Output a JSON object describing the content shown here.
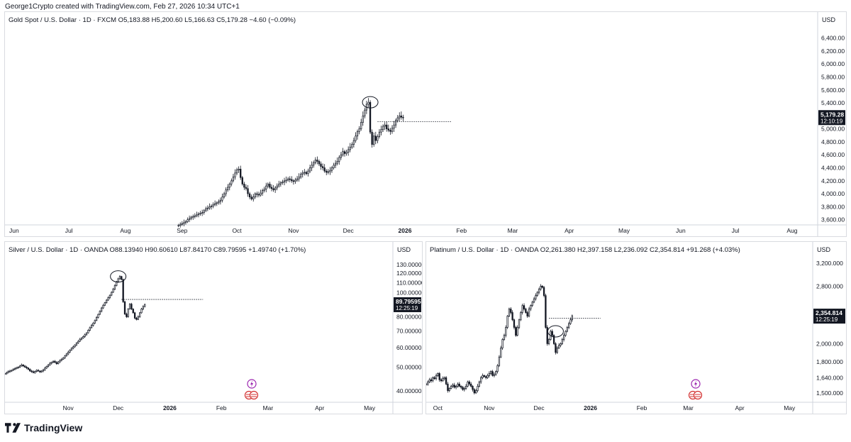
{
  "attribution": "George1Crypto created with TradingView.com, Feb 27, 2026 10:34 UTC+1",
  "brand": "TradingView",
  "colors": {
    "up": "#ffffff",
    "down": "#131722",
    "stroke": "#131722",
    "grid": "#f0f3fa",
    "axis": "#d1d4dc",
    "price_tag_bg": "#131722",
    "price_tag_fg": "#ffffff"
  },
  "icons": [
    "lightning-icon",
    "us-flag-icon"
  ],
  "chart_data": [
    {
      "type": "candlestick",
      "panel": "gold",
      "legend": "Gold Spot / U.S. Dollar · 1D · FXCM  O5,183.88  H5,200.60  L5,166.63  C5,179.28  −4.60 (−0.09%)",
      "currency": "USD",
      "price_label": "5,179.28",
      "countdown": "12:10:19",
      "last_value": 5179.28,
      "ylim": [
        3520,
        6560
      ],
      "y_ticks": [
        "6,400.00",
        "6,200.00",
        "6,000.00",
        "5,800.00",
        "5,600.00",
        "5,400.00",
        "5,200.00",
        "5,000.00",
        "4,800.00",
        "4,600.00",
        "4,400.00",
        "4,200.00",
        "4,000.00",
        "3,800.00",
        "3,600.00"
      ],
      "y_tick_values": [
        6400,
        6200,
        6000,
        5800,
        5600,
        5400,
        5200,
        5000,
        4800,
        4600,
        4400,
        4200,
        4000,
        3800,
        3600
      ],
      "x_ticks": [
        "Jun",
        "Jul",
        "Aug",
        "Sep",
        "Oct",
        "Nov",
        "Dec",
        "2026",
        "Feb",
        "Mar",
        "Apr",
        "May",
        "Jun",
        "Jul",
        "Aug"
      ],
      "x_tick_days": [
        0,
        30,
        61,
        92,
        122,
        153,
        183,
        214,
        245,
        273,
        304,
        334,
        365,
        395,
        426
      ],
      "xlim": [
        -5,
        440
      ],
      "bold_ticks": [
        "2026"
      ],
      "series": [
        {
          "from_day": 90,
          "values": [
            3515,
            3530,
            3540,
            3555,
            3570,
            3600,
            3620,
            3640,
            3650,
            3660,
            3675,
            3690,
            3700,
            3710,
            3740,
            3770,
            3780,
            3800,
            3810,
            3830,
            3850,
            3860,
            3880,
            3900,
            3950,
            4000,
            4060,
            4100,
            4150,
            4200,
            4260,
            4320,
            4370,
            4380,
            4250,
            4150,
            4100,
            4080,
            4000,
            3950,
            3920,
            3950,
            4000,
            3990,
            3980,
            4010,
            4050,
            4070,
            4120,
            4150,
            4100,
            4080,
            4060,
            4090,
            4120,
            4150,
            4170,
            4180,
            4200,
            4210,
            4230,
            4220,
            4200,
            4190,
            4210,
            4230,
            4260,
            4300,
            4320,
            4330,
            4310,
            4350,
            4400,
            4440,
            4480,
            4520,
            4500,
            4460,
            4420,
            4400,
            4350,
            4330,
            4340,
            4360,
            4400,
            4440,
            4470,
            4500,
            4560,
            4600,
            4650,
            4620,
            4640,
            4680,
            4720,
            4760,
            4820,
            4890,
            4960,
            5000,
            5100,
            5200,
            5290,
            5380,
            5410,
            4950,
            4760,
            4890,
            4820,
            4880,
            4950,
            4990,
            5040,
            5060,
            5000,
            4980,
            4960,
            5010,
            5060,
            5130,
            5170,
            5200,
            5180,
            5179.28
          ]
        }
      ],
      "reference_value": 5110,
      "highlight_day": 195
    },
    {
      "type": "candlestick",
      "panel": "silver",
      "legend": "Silver / U.S. Dollar · 1D · OANDA  O88.13940  H90.60610  L87.84170  C89.79595  +1.49740 (+1.70%)",
      "currency": "USD",
      "price_label": "89.79595",
      "countdown": "12:25:19",
      "last_value": 89.79595,
      "ylim": [
        36,
        139
      ],
      "y_ticks": [
        "130.00000",
        "120.00000",
        "110.00000",
        "100.00000",
        "90.00000",
        "80.00000",
        "70.00000",
        "60.00000",
        "50.00000",
        "40.00000"
      ],
      "y_tick_values": [
        130,
        120,
        110,
        100,
        90,
        80,
        70,
        60,
        50,
        40
      ],
      "x_ticks": [
        "Nov",
        "Dec",
        "2026",
        "Feb",
        "Mar",
        "Apr",
        "May"
      ],
      "x_tick_days": [
        153,
        183,
        214,
        245,
        273,
        304,
        334
      ],
      "xlim": [
        115,
        348
      ],
      "bold_ticks": [
        "2026"
      ],
      "series": [
        {
          "from_day": 115,
          "values": [
            47,
            47.5,
            48,
            48.2,
            48.5,
            49,
            49.3,
            49.8,
            50,
            50.5,
            51,
            50.5,
            50,
            49.6,
            49,
            48.2,
            47.9,
            47.5,
            48,
            48.5,
            48.2,
            47.8,
            48.2,
            48.7,
            49.5,
            50.3,
            51,
            51.8,
            52.3,
            52.8,
            52.2,
            51.6,
            52.5,
            53.2,
            53.8,
            54.5,
            55.5,
            56.5,
            57.5,
            58.6,
            59.6,
            60.4,
            61.5,
            62.6,
            63.6,
            64.8,
            65.6,
            66.5,
            67.6,
            68.8,
            70.5,
            72.2,
            73.8,
            75.4,
            77.2,
            79.5,
            81.8,
            84.2,
            86.8,
            89,
            91.2,
            93.4,
            95.5,
            97.8,
            100.5,
            103.5,
            107,
            111,
            114,
            116.5,
            113.2,
            92,
            82,
            80,
            86,
            90,
            86,
            83,
            79,
            78,
            80,
            83,
            86,
            88,
            89.8
          ]
        }
      ],
      "reference_value": 94,
      "highlight_day": 183
    },
    {
      "type": "candlestick",
      "panel": "platinum",
      "legend": "Platinum / U.S. Dollar · 1D · OANDA  O2,261.380  H2,397.158  L2,236.092  C2,354.814  +91.268 (+4.03%)",
      "currency": "USD",
      "price_label": "2,354.814",
      "countdown": "12:25:19",
      "last_value": 2354.814,
      "ylim": [
        1420,
        3310
      ],
      "y_ticks": [
        "3,200.000",
        "2,800.000",
        "2,400.000",
        "2,000.000",
        "1,800.000",
        "1,640.000",
        "1,500.000"
      ],
      "y_tick_values": [
        3200,
        2800,
        2400,
        2000,
        1800,
        1640,
        1500
      ],
      "x_ticks": [
        "Oct",
        "Nov",
        "Dec",
        "2026",
        "Feb",
        "Mar",
        "Apr",
        "May"
      ],
      "x_tick_days": [
        122,
        153,
        183,
        214,
        245,
        273,
        304,
        334
      ],
      "xlim": [
        115,
        348
      ],
      "bold_ticks": [
        "2026"
      ],
      "series": [
        {
          "from_day": 115,
          "values": [
            1580,
            1600,
            1620,
            1610,
            1640,
            1630,
            1660,
            1680,
            1620,
            1610,
            1630,
            1640,
            1580,
            1520,
            1540,
            1560,
            1570,
            1550,
            1560,
            1580,
            1560,
            1550,
            1530,
            1540,
            1560,
            1600,
            1580,
            1560,
            1530,
            1500,
            1520,
            1560,
            1600,
            1640,
            1660,
            1650,
            1640,
            1660,
            1680,
            1700,
            1660,
            1670,
            1700,
            1760,
            1850,
            1950,
            2050,
            2100,
            2200,
            2350,
            2450,
            2400,
            2300,
            2200,
            2100,
            2200,
            2300,
            2400,
            2500,
            2450,
            2400,
            2350,
            2450,
            2500,
            2550,
            2600,
            2650,
            2700,
            2750,
            2800,
            2780,
            2650,
            2200,
            2000,
            2050,
            2150,
            2100,
            2000,
            1900,
            1950,
            1980,
            2000,
            2050,
            2100,
            2150,
            2200,
            2250,
            2300,
            2354.814
          ]
        }
      ],
      "reference_value": 2320,
      "highlight_day": 193
    }
  ]
}
